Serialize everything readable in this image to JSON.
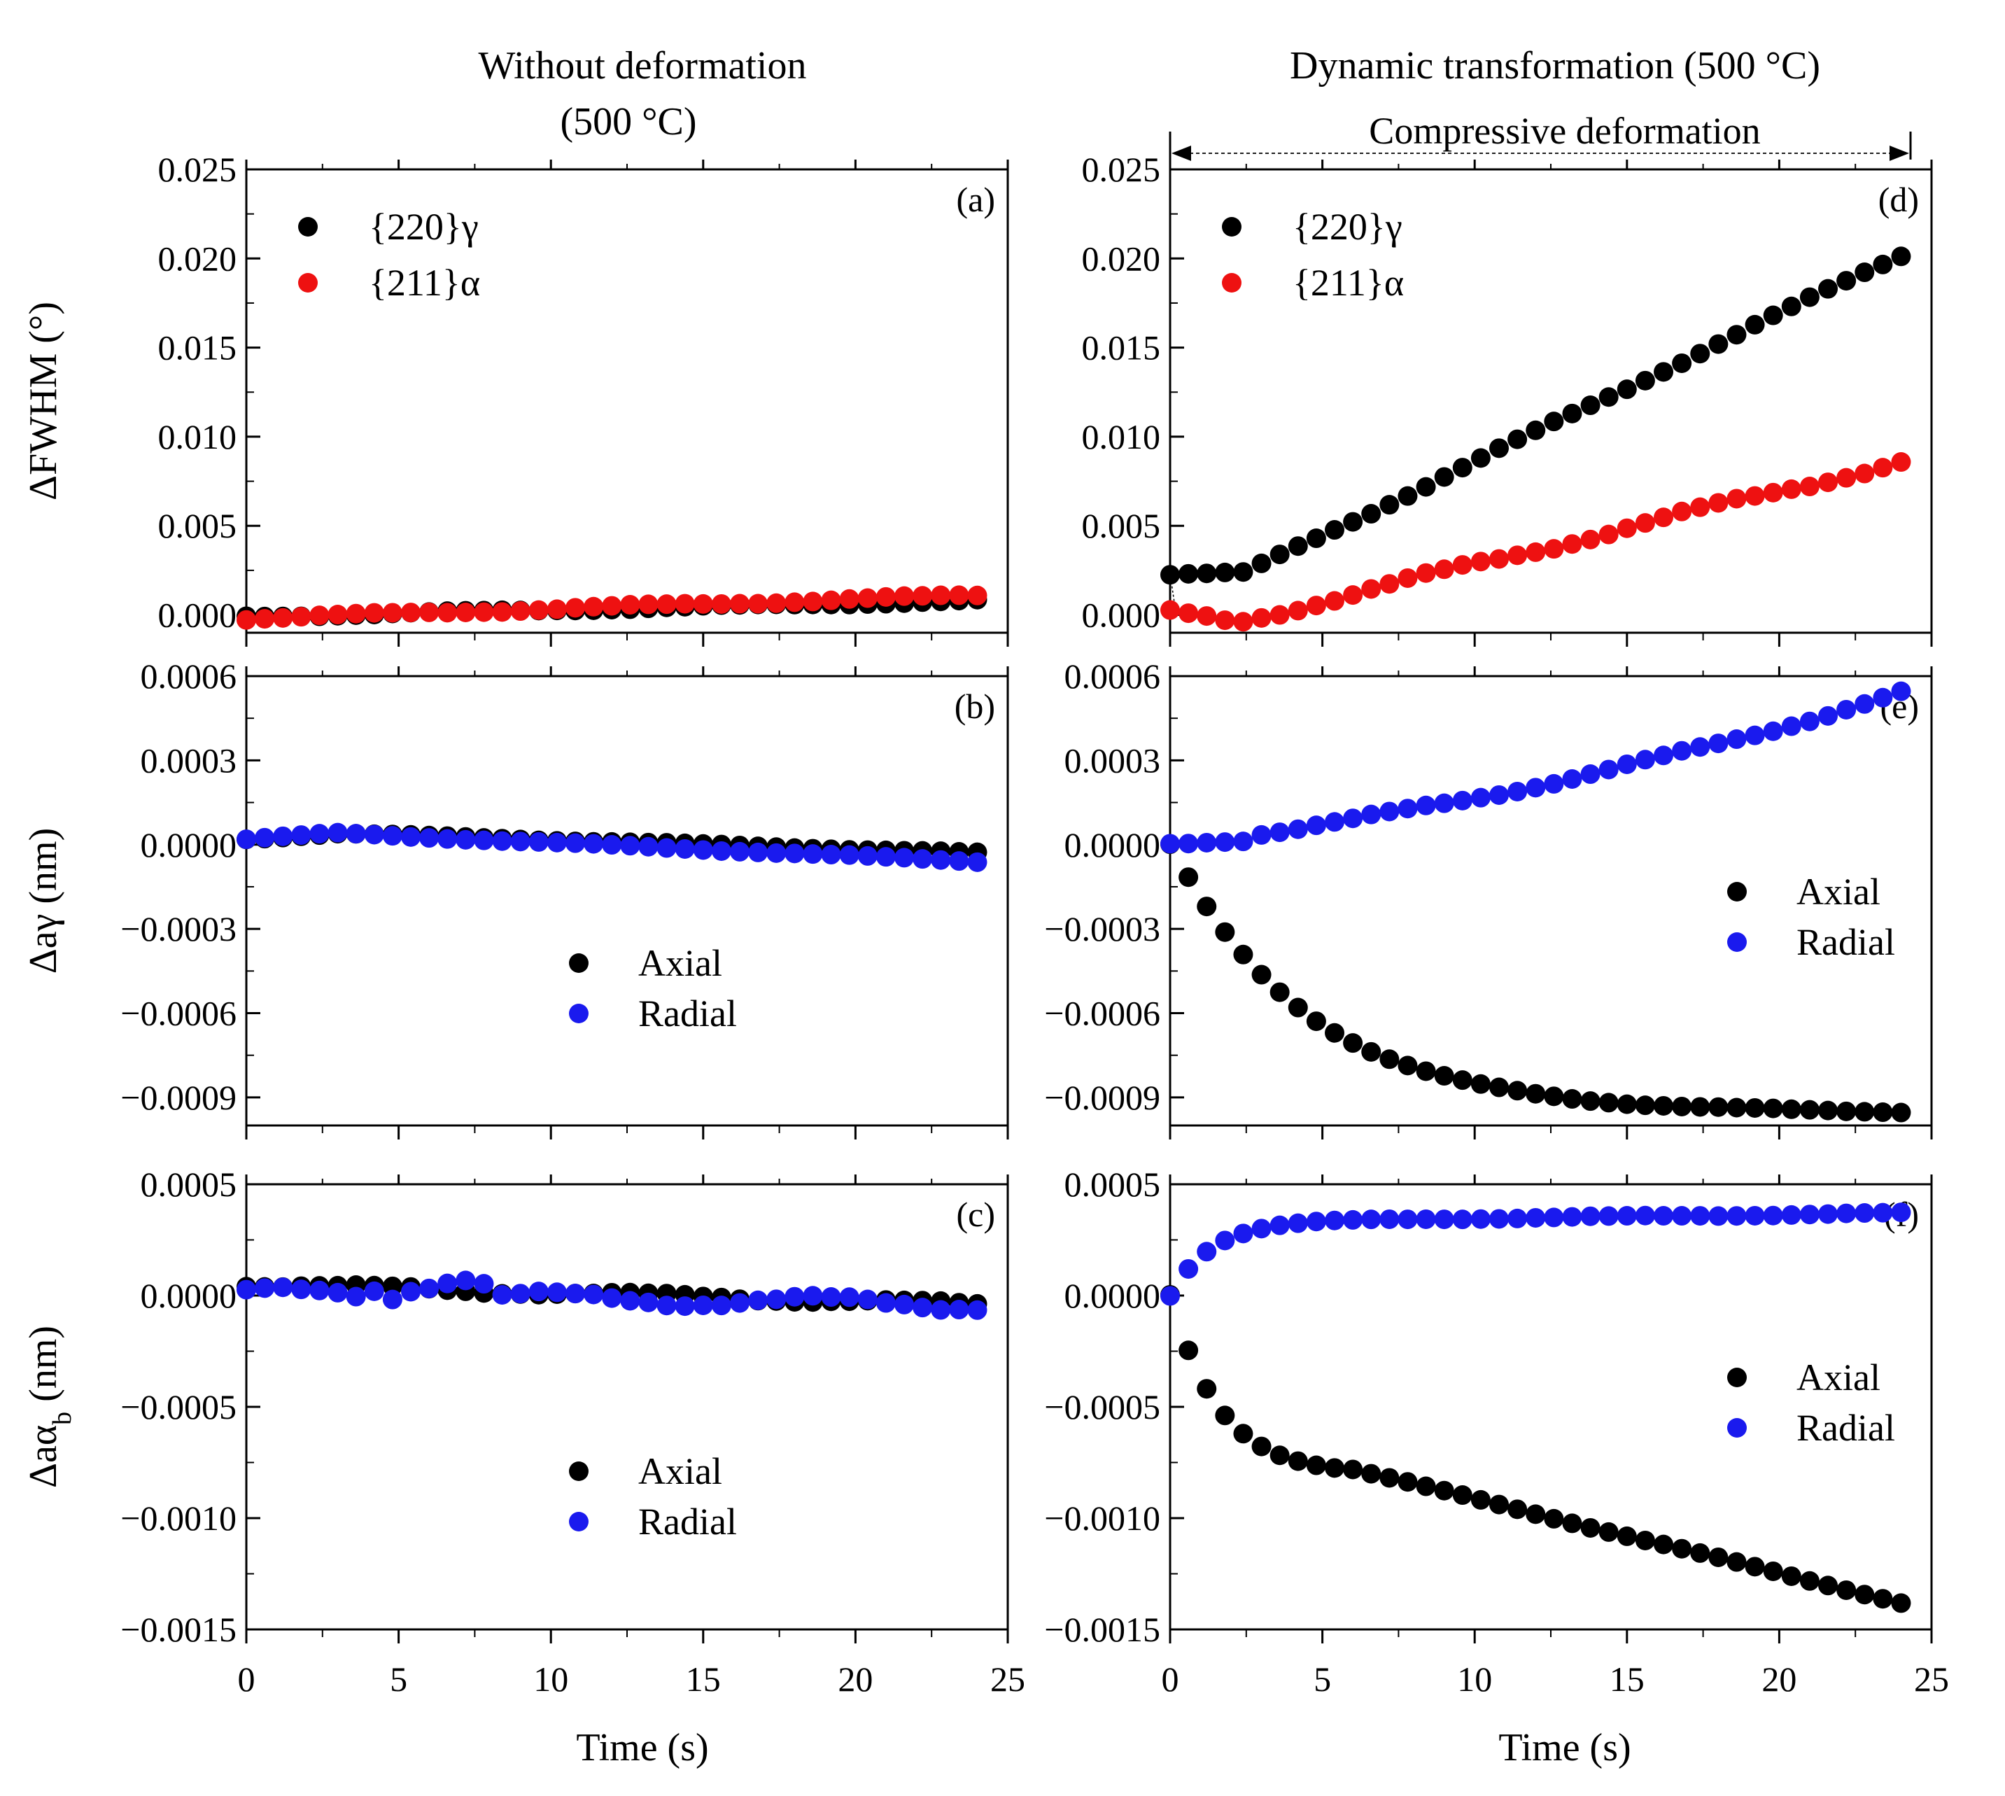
{
  "column_titles": {
    "left": [
      "Without deformation",
      "(500 °C)"
    ],
    "right": "Dynamic transformation (500 °C)"
  },
  "annotation": {
    "text": "Compressive deformation"
  },
  "x_axis": {
    "label": "Time (s)",
    "ticks": [
      "0",
      "5",
      "10",
      "15",
      "20",
      "25"
    ]
  },
  "colors": {
    "black": "#000000",
    "red": "#ee1111",
    "blue": "#1a1aee"
  },
  "chart_data": [
    {
      "id": "a",
      "panel_label": "(a)",
      "type": "scatter",
      "ylabel": "ΔFWHM (°)",
      "ylim": [
        -0.001,
        0.025
      ],
      "xlim": [
        0,
        25
      ],
      "yticks": [
        "0.000",
        "0.005",
        "0.010",
        "0.015",
        "0.020",
        "0.025"
      ],
      "yticks_values": [
        0,
        0.005,
        0.01,
        0.015,
        0.02,
        0.025
      ],
      "legend": {
        "position": "top-left",
        "labels": [
          "{220}γ",
          "{211}α"
        ]
      },
      "series": [
        {
          "name": "{220}γ",
          "color": "black",
          "shape": "linear",
          "y0": -0.0001,
          "y1": 0.0008,
          "noise": 7e-05
        },
        {
          "name": "{211}α",
          "color": "red",
          "shape": "linear",
          "y0": -0.0002,
          "y1": 0.0011,
          "noise": 9e-05
        }
      ]
    },
    {
      "id": "b",
      "panel_label": "(b)",
      "type": "scatter",
      "ylabel": "Δaγ (nm)",
      "ylim": [
        -0.001,
        0.0006
      ],
      "xlim": [
        0,
        25
      ],
      "yticks": [
        "0.0006",
        "0.0003",
        "0.0000",
        "−0.0003",
        "−0.0006",
        "−0.0009"
      ],
      "yticks_values": [
        0.0006,
        0.0003,
        0,
        -0.0003,
        -0.0006,
        -0.0009
      ],
      "legend": {
        "position": "center",
        "labels": [
          "Axial",
          "Radial"
        ]
      },
      "series": [
        {
          "name": "Axial",
          "color": "black",
          "shape": "hump",
          "y0": 2e-05,
          "y1": -3e-05,
          "peak": 4e-05,
          "noise": 3e-06
        },
        {
          "name": "Radial",
          "color": "blue",
          "shape": "hump",
          "y0": 2e-05,
          "y1": -6e-05,
          "peak": 4e-05,
          "noise": 3e-06
        }
      ]
    },
    {
      "id": "c",
      "panel_label": "(c)",
      "type": "scatter",
      "ylabel": "Δaα_b (nm)",
      "ylim": [
        -0.0015,
        0.0005
      ],
      "xlim": [
        0,
        25
      ],
      "yticks": [
        "0.0005",
        "0.0000",
        "−0.0005",
        "−0.0010",
        "−0.0015"
      ],
      "yticks_values": [
        0.0005,
        0,
        -0.0005,
        -0.001,
        -0.0015
      ],
      "legend": {
        "position": "center",
        "labels": [
          "Axial",
          "Radial"
        ]
      },
      "series": [
        {
          "name": "Axial",
          "color": "black",
          "shape": "linear",
          "y0": 5e-05,
          "y1": -4e-05,
          "noise": 1.2e-05
        },
        {
          "name": "Radial",
          "color": "blue",
          "shape": "linear",
          "y0": 1e-05,
          "y1": -4e-05,
          "noise": 3e-05,
          "burst": [
            4,
            8,
            9e-05
          ]
        }
      ]
    },
    {
      "id": "d",
      "panel_label": "(d)",
      "type": "scatter",
      "ylabel": "",
      "ylim": [
        -0.001,
        0.025
      ],
      "xlim": [
        0,
        25
      ],
      "yticks": [
        "0.000",
        "0.005",
        "0.010",
        "0.015",
        "0.020",
        "0.025"
      ],
      "yticks_values": [
        0,
        0.005,
        0.01,
        0.015,
        0.02,
        0.025
      ],
      "legend": {
        "position": "top-left",
        "labels": [
          "{220}γ",
          "{211}α"
        ]
      },
      "series": [
        {
          "name": "{220}γ",
          "color": "black",
          "shape": "elbow",
          "y0": 0.0023,
          "y_knee": 0.0023,
          "knee": 2.4,
          "y1": 0.0202,
          "noise": 0.00012
        },
        {
          "name": "{211}α",
          "color": "red",
          "shape": "elbow",
          "y0": 0.0001,
          "y_knee": -0.0004,
          "knee": 2.2,
          "y1": 0.0086,
          "noise": 0.0002
        }
      ]
    },
    {
      "id": "e",
      "panel_label": "(e)",
      "type": "scatter",
      "ylabel": "",
      "ylim": [
        -0.001,
        0.0006
      ],
      "xlim": [
        0,
        25
      ],
      "yticks": [
        "0.0006",
        "0.0003",
        "0.0000",
        "−0.0003",
        "−0.0006",
        "−0.0009"
      ],
      "yticks_values": [
        0.0006,
        0.0003,
        0,
        -0.0003,
        -0.0006,
        -0.0009
      ],
      "legend": {
        "position": "right",
        "labels": [
          "Axial",
          "Radial"
        ]
      },
      "series": [
        {
          "name": "Axial",
          "color": "black",
          "shape": "saturate",
          "ymin": -0.00095,
          "y1": -0.00095,
          "tau": 4.5,
          "noise": 4e-06
        },
        {
          "name": "Radial",
          "color": "blue",
          "shape": "quad",
          "y0": 0.0,
          "y1": 0.00054,
          "noise": 8e-06
        }
      ]
    },
    {
      "id": "f",
      "panel_label": "(f)",
      "type": "scatter",
      "ylabel": "",
      "ylim": [
        -0.0015,
        0.0005
      ],
      "xlim": [
        0,
        25
      ],
      "yticks": [
        "0.0005",
        "0.0000",
        "−0.0005",
        "−0.0010",
        "−0.0015"
      ],
      "yticks_values": [
        0.0005,
        0,
        -0.0005,
        -0.001,
        -0.0015
      ],
      "legend": {
        "position": "right",
        "labels": [
          "Axial",
          "Radial"
        ]
      },
      "series": [
        {
          "name": "Axial",
          "color": "black",
          "shape": "drop",
          "y0": 0.0,
          "ymid": -0.00078,
          "y1": -0.00138,
          "noise": 4e-06
        },
        {
          "name": "Radial",
          "color": "blue",
          "shape": "rise",
          "y0": 0.0,
          "ysat": 0.00033,
          "y1": 0.00037,
          "noise": 4e-06
        }
      ]
    }
  ]
}
